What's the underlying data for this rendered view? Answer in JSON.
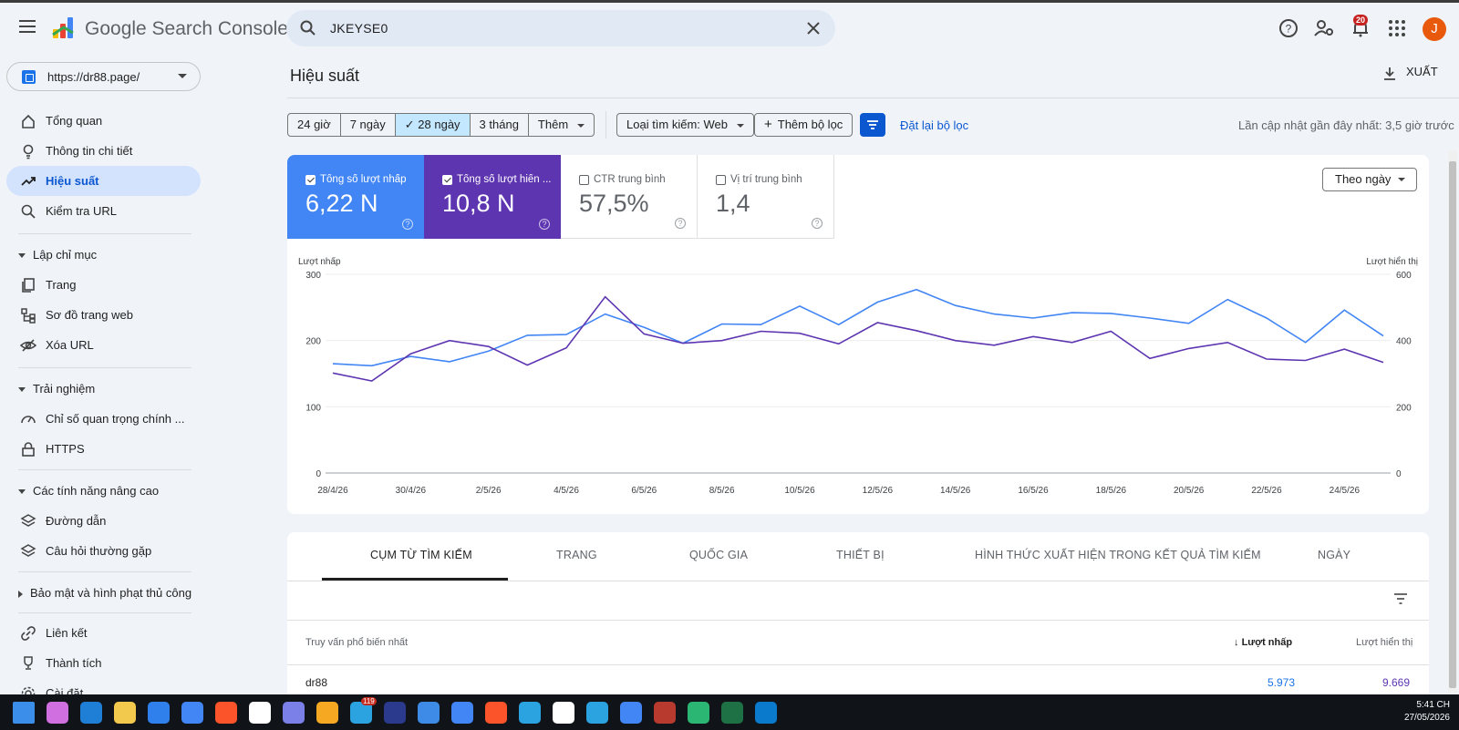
{
  "app": {
    "brand": "Google Search Console",
    "search_value": "JKEYSE0",
    "notification_count": "20",
    "avatar_initial": "J"
  },
  "property": {
    "url": "https://dr88.page/"
  },
  "sidebar": {
    "items": [
      {
        "label": "Tổng quan",
        "icon": "home-icon"
      },
      {
        "label": "Thông tin chi tiết",
        "icon": "lightbulb-icon"
      },
      {
        "label": "Hiệu suất",
        "icon": "trending-up-icon",
        "active": true
      },
      {
        "label": "Kiểm tra URL",
        "icon": "search-icon"
      }
    ],
    "sections": [
      {
        "label": "Lập chỉ mục",
        "items": [
          {
            "label": "Trang",
            "icon": "pages-icon"
          },
          {
            "label": "Sơ đồ trang web",
            "icon": "sitemap-icon"
          },
          {
            "label": "Xóa URL",
            "icon": "eye-off-icon"
          }
        ]
      },
      {
        "label": "Trải nghiệm",
        "items": [
          {
            "label": "Chỉ số quan trọng chính ...",
            "icon": "speed-icon"
          },
          {
            "label": "HTTPS",
            "icon": "lock-icon"
          }
        ]
      },
      {
        "label": "Các tính năng nâng cao",
        "items": [
          {
            "label": "Đường dẫn",
            "icon": "layers-icon"
          },
          {
            "label": "Câu hỏi thường gặp",
            "icon": "layers-icon"
          }
        ]
      },
      {
        "label": "Bảo mật và hình phạt thủ công",
        "collapsed": true
      }
    ],
    "bottom_items": [
      {
        "label": "Liên kết",
        "icon": "link-icon"
      },
      {
        "label": "Thành tích",
        "icon": "trophy-icon"
      },
      {
        "label": "Cài đặt",
        "icon": "gear-icon"
      }
    ]
  },
  "main": {
    "title": "Hiệu suất",
    "export_label": "XUẤT",
    "date_ranges": [
      "24 giờ",
      "7 ngày",
      "28 ngày",
      "3 tháng",
      "Thêm"
    ],
    "selected_range": "28 ngày",
    "search_type": "Loại tìm kiếm: Web",
    "add_filter": "Thêm bộ lọc",
    "reset_filters": "Đặt lại bộ lọc",
    "last_updated": "Lần cập nhật gần đây nhất: 3,5 giờ trước",
    "group_by": "Theo ngày"
  },
  "metrics": [
    {
      "label": "Tổng số lượt nhấp",
      "value": "6,22 N",
      "checked": true,
      "color": "#4285f4"
    },
    {
      "label": "Tổng số lượt hiển ...",
      "value": "10,8 N",
      "checked": true,
      "color": "#5e35b1"
    },
    {
      "label": "CTR trung bình",
      "value": "57,5%",
      "checked": false
    },
    {
      "label": "Vị trí trung bình",
      "value": "1,4",
      "checked": false
    }
  ],
  "chart_data": {
    "type": "line",
    "ylabel_left": "Lượt nhấp",
    "ylabel_right": "Lượt hiển thị",
    "left_ticks": [
      "300",
      "200",
      "100",
      "0"
    ],
    "right_ticks": [
      "600",
      "400",
      "200",
      "0"
    ],
    "ylim_left": [
      0,
      300
    ],
    "ylim_right": [
      0,
      600
    ],
    "x_tick_labels": [
      "28/4/26",
      "30/4/26",
      "2/5/26",
      "4/5/26",
      "6/5/26",
      "8/5/26",
      "10/5/26",
      "12/5/26",
      "14/5/26",
      "16/5/26",
      "18/5/26",
      "20/5/26",
      "22/5/26",
      "24/5/26"
    ],
    "grid": true,
    "series": [
      {
        "axis": "left",
        "color": "#4285f4",
        "values": [
          165,
          162,
          176,
          168,
          184,
          208,
          209,
          240,
          220,
          196,
          225,
          224,
          252,
          224,
          258,
          277,
          253,
          240,
          234,
          242,
          241,
          234,
          226,
          262,
          234,
          197,
          246,
          207
        ]
      },
      {
        "axis": "right",
        "color": "#5e35b1",
        "values": [
          302,
          278,
          360,
          400,
          382,
          326,
          378,
          532,
          420,
          392,
          400,
          428,
          422,
          390,
          454,
          430,
          400,
          386,
          412,
          394,
          428,
          346,
          376,
          394,
          344,
          340,
          374,
          334
        ]
      }
    ]
  },
  "tabs": [
    "CỤM TỪ TÌM KIẾM",
    "TRANG",
    "QUỐC GIA",
    "THIẾT BỊ",
    "HÌNH THỨC XUẤT HIỆN TRONG KẾT QUẢ TÌM KIẾM",
    "NGÀY"
  ],
  "table": {
    "col_query": "Truy vấn phổ biến nhất",
    "col_clicks": "Lượt nhấp",
    "col_impressions": "Lượt hiển thị",
    "rows": [
      {
        "query": "dr88",
        "clicks": "5.973",
        "impressions": "9.669"
      }
    ]
  },
  "taskbar": {
    "time": "5:41 CH",
    "date": "27/05/2026",
    "telegram_badge": "119",
    "icons": [
      "windows-start-icon",
      "copilot-icon",
      "edge-icon",
      "file-explorer-icon",
      "store-icon",
      "chrome-icon",
      "brave-icon",
      "app-icon",
      "app-icon",
      "sublime-icon",
      "telegram-icon",
      "photoshop-icon",
      "app-icon",
      "chrome-icon",
      "brave-icon",
      "telegram-icon",
      "app-icon",
      "telegram-icon",
      "chrome-icon",
      "winrar-icon",
      "app-icon",
      "excel-icon",
      "vscode-icon"
    ]
  }
}
